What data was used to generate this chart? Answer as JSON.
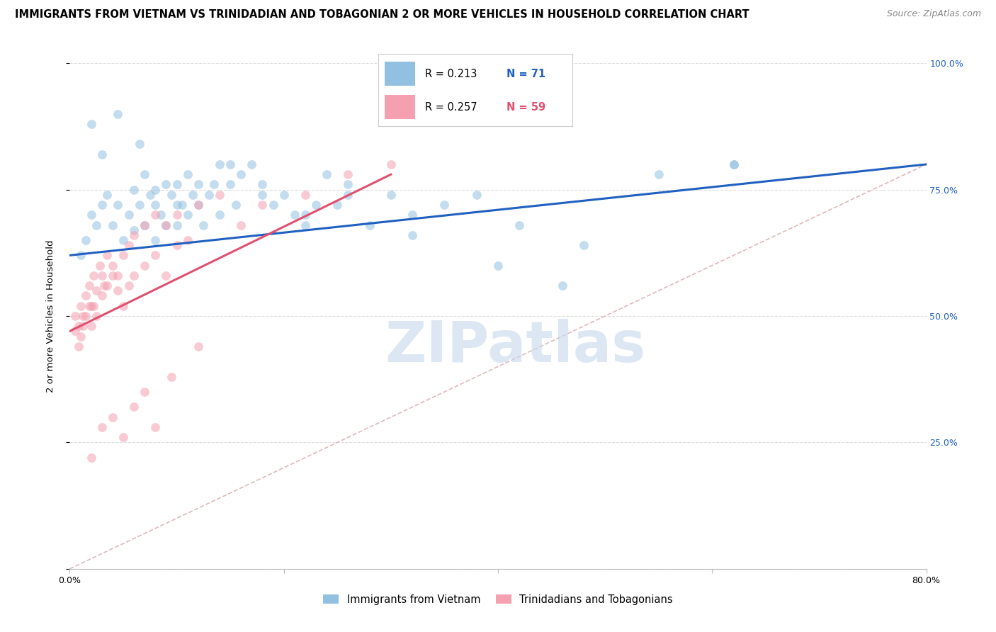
{
  "title": "IMMIGRANTS FROM VIETNAM VS TRINIDADIAN AND TOBAGONIAN 2 OR MORE VEHICLES IN HOUSEHOLD CORRELATION CHART",
  "source": "Source: ZipAtlas.com",
  "ylabel": "2 or more Vehicles in Household",
  "xmin": 0.0,
  "xmax": 80.0,
  "ymin": 0.0,
  "ymax": 100.0,
  "legend_labels": [
    "Immigrants from Vietnam",
    "Trinidadians and Tobagonians"
  ],
  "legend_R": [
    0.213,
    0.257
  ],
  "legend_N": [
    71,
    59
  ],
  "blue_color": "#92C0E0",
  "pink_color": "#F4A0B0",
  "blue_line_color": "#2060C0",
  "pink_line_color": "#E05070",
  "diagonal_color": "#DDBBBB",
  "watermark_text": "ZIPatlas",
  "blue_scatter_x": [
    1.0,
    1.5,
    2.0,
    2.5,
    3.0,
    3.5,
    4.0,
    4.5,
    5.0,
    5.5,
    6.0,
    6.0,
    6.5,
    7.0,
    7.0,
    7.5,
    8.0,
    8.0,
    8.5,
    9.0,
    9.0,
    9.5,
    10.0,
    10.0,
    10.5,
    11.0,
    11.0,
    11.5,
    12.0,
    12.5,
    13.0,
    13.5,
    14.0,
    14.0,
    15.0,
    15.5,
    16.0,
    17.0,
    18.0,
    19.0,
    20.0,
    21.0,
    22.0,
    23.0,
    24.0,
    25.0,
    26.0,
    28.0,
    30.0,
    32.0,
    35.0,
    38.0,
    42.0,
    46.0,
    55.0,
    62.0,
    2.0,
    3.0,
    4.5,
    6.5,
    8.0,
    10.0,
    12.0,
    15.0,
    18.0,
    22.0,
    26.0,
    32.0,
    40.0,
    48.0,
    62.0
  ],
  "blue_scatter_y": [
    62,
    65,
    70,
    68,
    72,
    74,
    68,
    72,
    65,
    70,
    67,
    75,
    72,
    68,
    78,
    74,
    65,
    72,
    70,
    68,
    76,
    74,
    68,
    76,
    72,
    78,
    70,
    74,
    72,
    68,
    74,
    76,
    70,
    80,
    76,
    72,
    78,
    80,
    74,
    72,
    74,
    70,
    68,
    72,
    78,
    72,
    76,
    68,
    74,
    70,
    72,
    74,
    68,
    56,
    78,
    80,
    88,
    82,
    90,
    84,
    75,
    72,
    76,
    80,
    76,
    70,
    74,
    66,
    60,
    64,
    80
  ],
  "pink_scatter_x": [
    0.5,
    0.8,
    1.0,
    1.2,
    1.5,
    1.8,
    2.0,
    2.2,
    2.5,
    2.8,
    3.0,
    3.2,
    3.5,
    4.0,
    4.5,
    5.0,
    5.5,
    6.0,
    7.0,
    8.0,
    9.0,
    10.0,
    11.0,
    12.0,
    14.0,
    16.0,
    18.0,
    22.0,
    26.0,
    30.0,
    0.5,
    0.8,
    1.0,
    1.2,
    1.5,
    1.8,
    2.0,
    2.2,
    2.5,
    3.0,
    3.5,
    4.0,
    4.5,
    5.0,
    5.5,
    6.0,
    7.0,
    8.0,
    9.0,
    10.0,
    2.0,
    3.0,
    4.0,
    5.0,
    6.0,
    7.0,
    8.0,
    9.5,
    12.0
  ],
  "pink_scatter_y": [
    50,
    48,
    52,
    50,
    54,
    56,
    52,
    58,
    55,
    60,
    58,
    56,
    62,
    60,
    58,
    62,
    64,
    66,
    68,
    70,
    68,
    70,
    65,
    72,
    74,
    68,
    72,
    74,
    78,
    80,
    47,
    44,
    46,
    48,
    50,
    52,
    48,
    52,
    50,
    54,
    56,
    58,
    55,
    52,
    56,
    58,
    60,
    62,
    58,
    64,
    22,
    28,
    30,
    26,
    32,
    35,
    28,
    38,
    44
  ],
  "blue_line_x0": 0.0,
  "blue_line_y0": 62.0,
  "blue_line_x1": 80.0,
  "blue_line_y1": 80.0,
  "pink_line_x0": 0.0,
  "pink_line_y0": 47.0,
  "pink_line_x1": 30.0,
  "pink_line_y1": 78.0,
  "title_fontsize": 10.5,
  "source_fontsize": 9,
  "axis_label_fontsize": 9.5,
  "tick_fontsize": 9,
  "scatter_size": 85,
  "scatter_alpha": 0.55,
  "grid_color": "#DDDDDD",
  "background_color": "#FFFFFF"
}
